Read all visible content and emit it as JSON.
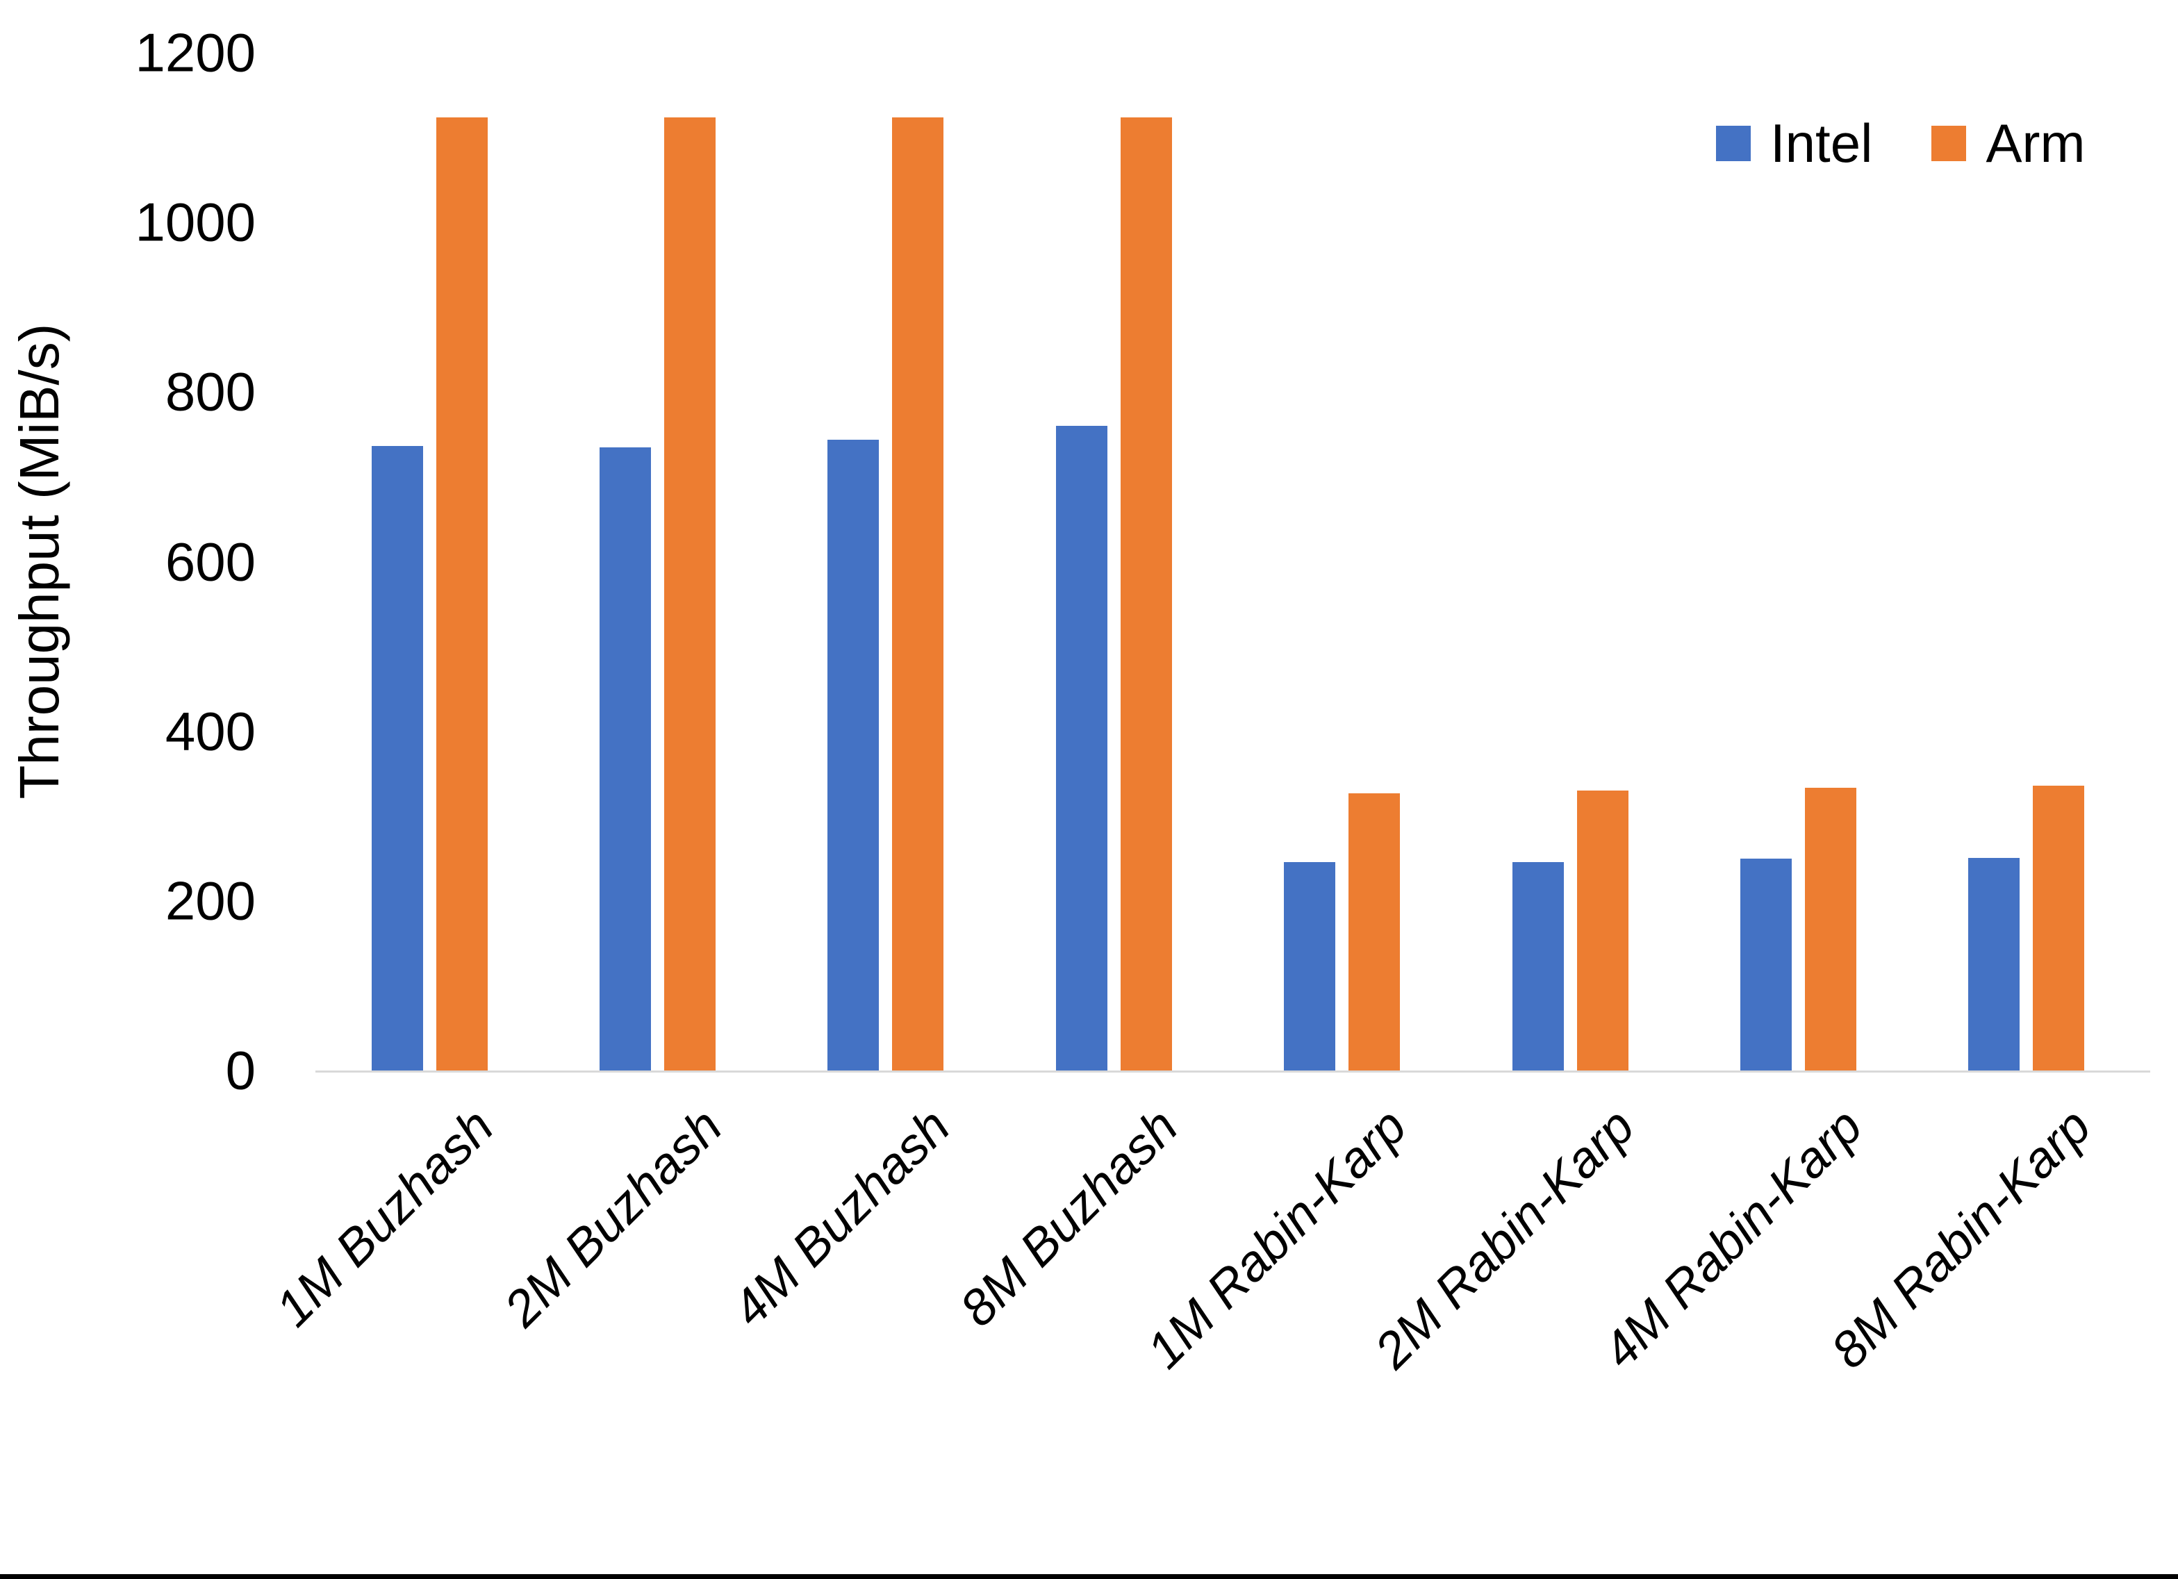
{
  "chart_data": {
    "type": "bar",
    "categories": [
      "1M Buzhash",
      "2M Buzhash",
      "4M Buzhash",
      "8M Buzhash",
      "1M Rabin-Karp",
      "2M Rabin-Karp",
      "4M Rabin-Karp",
      "8M Rabin-Karp"
    ],
    "series": [
      {
        "name": "Intel",
        "color": "#4472C4",
        "values": [
          736,
          735,
          744,
          760,
          246,
          246,
          250,
          251
        ]
      },
      {
        "name": "Arm",
        "color": "#ED7D31",
        "values": [
          1124,
          1124,
          1124,
          1124,
          327,
          330,
          333,
          336
        ]
      }
    ],
    "title": "",
    "xlabel": "",
    "ylabel": "Throughput (MiB/s)",
    "ylim": [
      0,
      1200
    ],
    "yticks": [
      0,
      200,
      400,
      600,
      800,
      1000,
      1200
    ],
    "grid": false,
    "legend_position": "top-right",
    "axis_line_color": "#D9D9D9",
    "text_color": "#000000",
    "background_color": "#FFFFFF",
    "bottom_border_color": "#000000"
  }
}
